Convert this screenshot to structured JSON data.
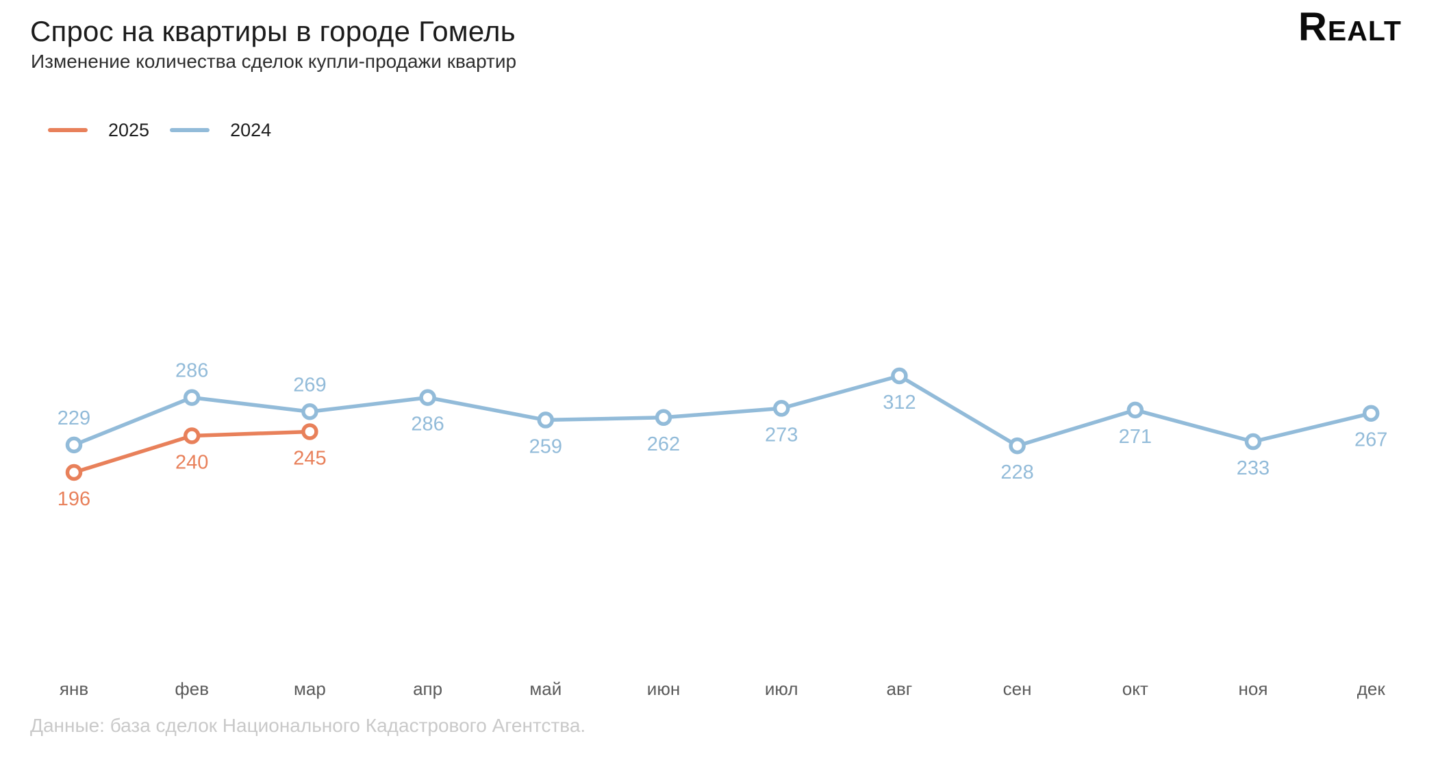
{
  "header": {
    "title": "Спрос на квартиры в городе Гомель",
    "subtitle": "Изменение количества сделок купли-продажи квартир",
    "logo_text": "Realt"
  },
  "legend": {
    "items": [
      {
        "label": "2025",
        "color": "#E8805A"
      },
      {
        "label": "2024",
        "color": "#92BBD9"
      }
    ]
  },
  "footer": {
    "source": "Данные: база сделок Национального Кадастрового Агентства."
  },
  "chart_data": {
    "type": "line",
    "categories": [
      "янв",
      "фев",
      "мар",
      "апр",
      "май",
      "июн",
      "июл",
      "авг",
      "сен",
      "окт",
      "ноя",
      "дек"
    ],
    "series": [
      {
        "name": "2025",
        "color": "#E8805A",
        "values": [
          196,
          240,
          245
        ],
        "label_positions": [
          "below",
          "below",
          "below"
        ]
      },
      {
        "name": "2024",
        "color": "#92BBD9",
        "values": [
          229,
          286,
          269,
          286,
          259,
          262,
          273,
          312,
          228,
          271,
          233,
          267
        ],
        "label_positions": [
          "above",
          "above",
          "above",
          "below",
          "below",
          "below",
          "below",
          "below",
          "below",
          "below",
          "below",
          "below"
        ]
      }
    ],
    "title": "Спрос на квартиры в городе Гомель",
    "xlabel": "",
    "ylabel": "",
    "grid": false,
    "axes_hidden": true,
    "legend_position": "top-left",
    "ylim_approx": [
      150,
      360
    ],
    "x_axis_label_color": "#5a5a5a",
    "marker_style": "open-circle"
  }
}
